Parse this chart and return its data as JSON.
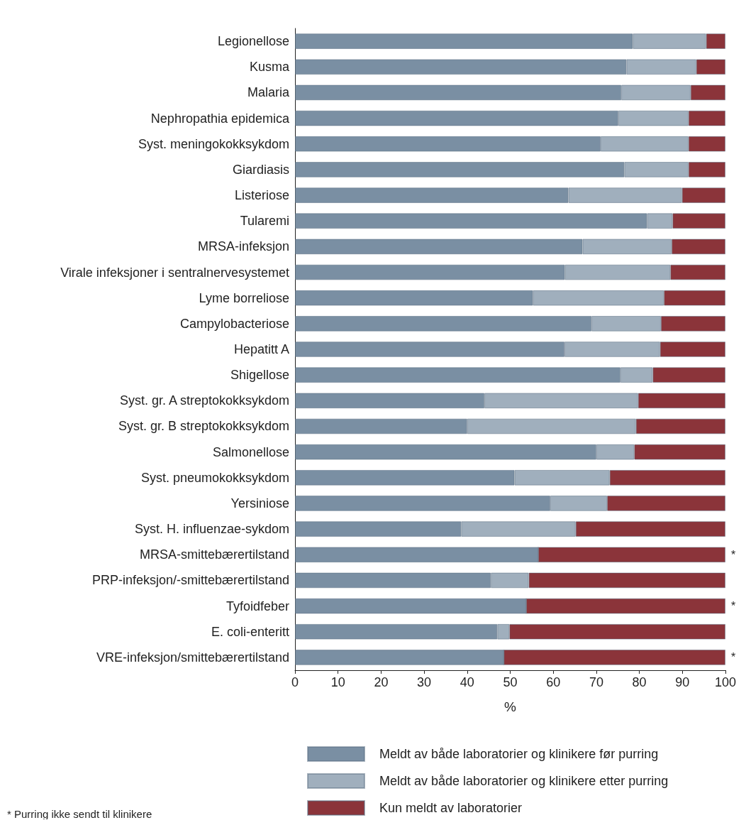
{
  "chart_data": {
    "type": "bar",
    "orientation": "horizontal",
    "stacked": true,
    "xlabel": "%",
    "categories": [
      "Legionellose",
      "Kusma",
      "Malaria",
      "Nephropathia epidemica",
      "Syst. meningokokksykdom",
      "Giardiasis",
      "Listeriose",
      "Tularemi",
      "MRSA-infeksjon",
      "Virale infeksjoner i sentralnervesystemet",
      "Lyme borreliose",
      "Campylobacteriose",
      "Hepatitt A",
      "Shigellose",
      "Syst. gr. A streptokokksykdom",
      "Syst. gr. B streptokokksykdom",
      "Salmonellose",
      "Syst. pneumokokksykdom",
      "Yersiniose",
      "Syst. H. influenzae-sykdom",
      "MRSA-smittebærertilstand",
      "PRP-infeksjon/-smittebærertilstand",
      "Tyfoidfeber",
      "E. coli-enteritt",
      "VRE-infeksjon/smittebærertilstand"
    ],
    "series": [
      {
        "name": "Meldt av både laboratorier og klinikere før purring",
        "color": "#7a8fa3",
        "values": [
          78.5,
          77,
          75.8,
          75.1,
          71,
          76.5,
          63.5,
          81.8,
          66.8,
          62.7,
          55.3,
          68.9,
          62.6,
          75.6,
          44,
          40,
          70,
          51,
          59.3,
          38.6,
          56.5,
          45.5,
          53.7,
          47,
          48.5
        ]
      },
      {
        "name": "Meldt av både laboratorier og klinikere etter purring",
        "color": "#a0afbd",
        "values": [
          17,
          16.2,
          16.1,
          16.3,
          20.4,
          14.9,
          26.4,
          5.9,
          20.7,
          24.5,
          30.4,
          16.1,
          22.2,
          7.5,
          35.7,
          39.2,
          8.8,
          22.1,
          13.2,
          26.6,
          0,
          8.8,
          0,
          2.8,
          0
        ]
      },
      {
        "name": "Kun meldt av laboratorier",
        "color": "#8b343a",
        "values": [
          4.5,
          6.8,
          8.1,
          8.6,
          8.6,
          8.6,
          10.1,
          12.3,
          12.5,
          12.8,
          14.3,
          15,
          15.2,
          16.9,
          20.3,
          20.8,
          21.2,
          26.9,
          27.5,
          34.8,
          43.5,
          45.7,
          46.3,
          50.2,
          51.5
        ],
        "value_labels": [
          null,
          null,
          null,
          null,
          null,
          null,
          null,
          null,
          null,
          null,
          null,
          null,
          null,
          null,
          null,
          null,
          null,
          null,
          null,
          null,
          "*",
          null,
          "*",
          null,
          "*"
        ]
      }
    ],
    "xlim": [
      0,
      100
    ],
    "xticks": [
      0,
      10,
      20,
      30,
      40,
      50,
      60,
      70,
      80,
      90,
      100
    ],
    "grid": false,
    "legend": "bottom",
    "annotations": [
      "* Purring ikke sendt til klinikere"
    ]
  }
}
